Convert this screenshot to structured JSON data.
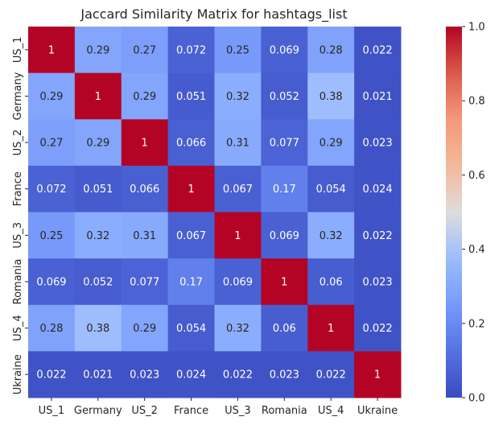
{
  "chart_data": {
    "type": "heatmap",
    "title": "Jaccard Similarity Matrix for hashtags_list",
    "xlabel": "",
    "ylabel": "",
    "x_categories": [
      "US_1",
      "Germany",
      "US_2",
      "France",
      "US_3",
      "Romania",
      "US_4",
      "Ukraine"
    ],
    "y_categories": [
      "US_1",
      "Germany",
      "US_2",
      "France",
      "US_3",
      "Romania",
      "US_4",
      "Ukraine"
    ],
    "values": [
      [
        1,
        0.29,
        0.27,
        0.072,
        0.25,
        0.069,
        0.28,
        0.022
      ],
      [
        0.29,
        1,
        0.29,
        0.051,
        0.32,
        0.052,
        0.38,
        0.021
      ],
      [
        0.27,
        0.29,
        1,
        0.066,
        0.31,
        0.077,
        0.29,
        0.023
      ],
      [
        0.072,
        0.051,
        0.066,
        1,
        0.067,
        0.17,
        0.054,
        0.024
      ],
      [
        0.25,
        0.32,
        0.31,
        0.067,
        1,
        0.069,
        0.32,
        0.022
      ],
      [
        0.069,
        0.052,
        0.077,
        0.17,
        0.069,
        1,
        0.06,
        0.023
      ],
      [
        0.28,
        0.38,
        0.29,
        0.054,
        0.32,
        0.06,
        1,
        0.022
      ],
      [
        0.022,
        0.021,
        0.023,
        0.024,
        0.022,
        0.023,
        0.022,
        1
      ]
    ],
    "annotations": [
      [
        "1",
        "0.29",
        "0.27",
        "0.072",
        "0.25",
        "0.069",
        "0.28",
        "0.022"
      ],
      [
        "0.29",
        "1",
        "0.29",
        "0.051",
        "0.32",
        "0.052",
        "0.38",
        "0.021"
      ],
      [
        "0.27",
        "0.29",
        "1",
        "0.066",
        "0.31",
        "0.077",
        "0.29",
        "0.023"
      ],
      [
        "0.072",
        "0.051",
        "0.066",
        "1",
        "0.067",
        "0.17",
        "0.054",
        "0.024"
      ],
      [
        "0.25",
        "0.32",
        "0.31",
        "0.067",
        "1",
        "0.069",
        "0.32",
        "0.022"
      ],
      [
        "0.069",
        "0.052",
        "0.077",
        "0.17",
        "0.069",
        "1",
        "0.06",
        "0.023"
      ],
      [
        "0.28",
        "0.38",
        "0.29",
        "0.054",
        "0.32",
        "0.06",
        "1",
        "0.022"
      ],
      [
        "0.022",
        "0.021",
        "0.023",
        "0.024",
        "0.022",
        "0.023",
        "0.022",
        "1"
      ]
    ],
    "colormap": "coolwarm",
    "vmin": 0.0,
    "vmax": 1.0,
    "colorbar_ticks": [
      "0.0",
      "0.2",
      "0.4",
      "0.6",
      "0.8",
      "1.0"
    ],
    "colorbar_tick_values": [
      0.0,
      0.2,
      0.4,
      0.6,
      0.8,
      1.0
    ],
    "grid": false,
    "legend": "colorbar-right"
  }
}
